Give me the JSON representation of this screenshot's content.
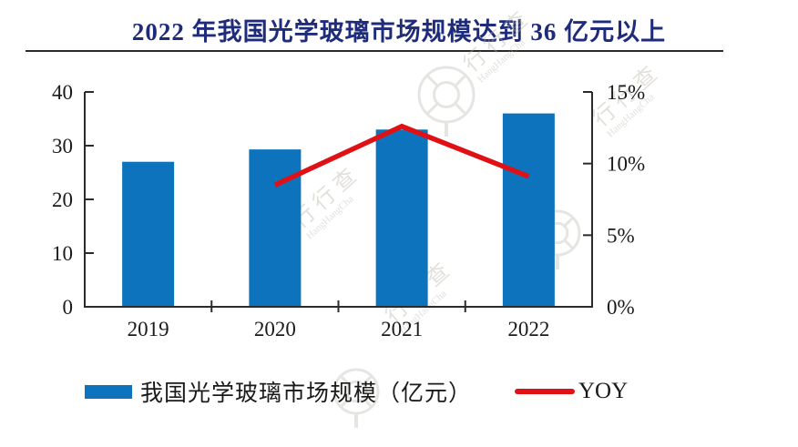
{
  "header": {
    "title": "2022 年我国光学玻璃市场规模达到 36 亿元以上",
    "title_color": "#1F2C7C"
  },
  "chart_data": {
    "type": "bar",
    "title": "2022 年我国光学玻璃市场规模达到 36 亿元以上",
    "categories": [
      "2019",
      "2020",
      "2021",
      "2022"
    ],
    "series": [
      {
        "name": "我国光学玻璃市场规模（亿元）",
        "type": "bar",
        "axis": "left",
        "color": "#0D73BC",
        "values": [
          27,
          29.3,
          33,
          36
        ]
      },
      {
        "name": "YOY",
        "type": "line",
        "axis": "right",
        "color": "#E01114",
        "values": [
          null,
          8.5,
          12.6,
          9.1
        ]
      }
    ],
    "left_axis": {
      "min": 0,
      "max": 40,
      "ticks": [
        "0",
        "10",
        "20",
        "30",
        "40"
      ]
    },
    "right_axis": {
      "min": 0,
      "max": 15,
      "ticks": [
        "0%",
        "5%",
        "10%",
        "15%"
      ]
    },
    "grid": false,
    "legend_position": "bottom",
    "axis_color": "#2b2b2b",
    "label_color": "#1a1a1a"
  },
  "watermark": {
    "text": "行行查",
    "latin": "HangHangCha"
  }
}
